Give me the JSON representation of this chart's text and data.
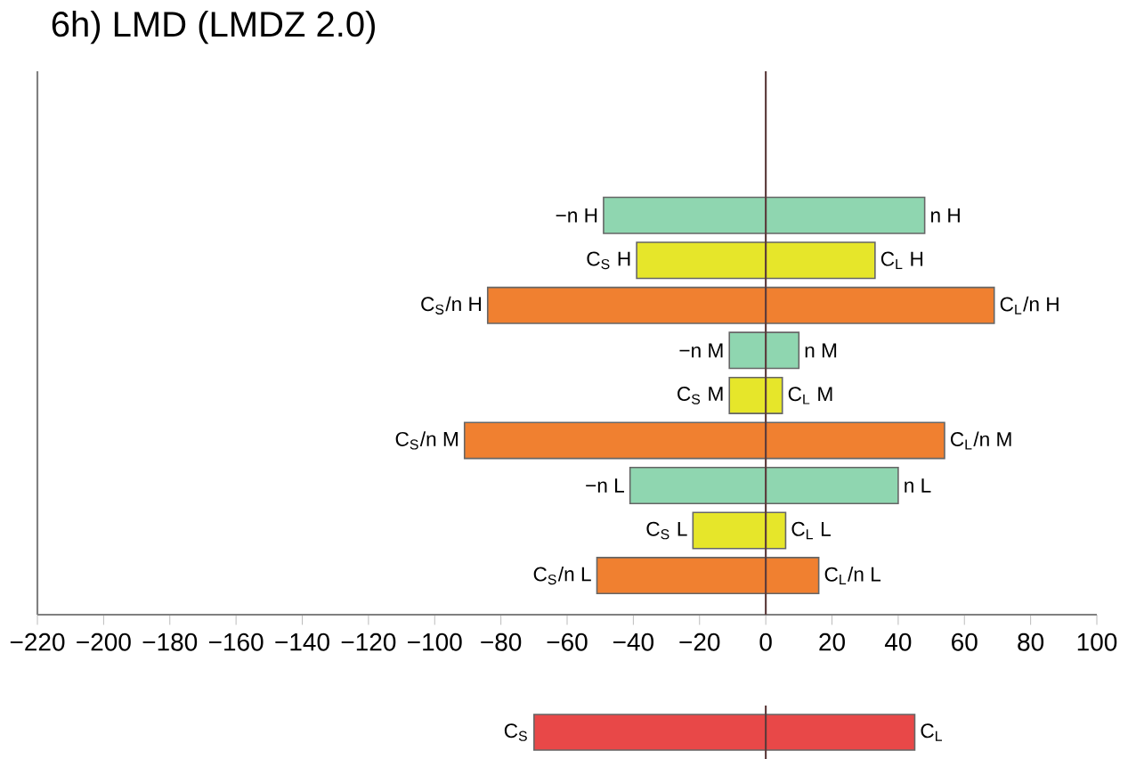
{
  "chart_data": [
    {
      "type": "bar",
      "orientation": "horizontal",
      "title": "6h) LMD (LMDZ 2.0)",
      "categories": [
        "−n H",
        "C$_{S}$ H",
        "C$_{S}$/n H",
        "−n M",
        "C$_{S}$ M",
        "C$_{S}$/n M",
        "−n L",
        "C$_{S}$ L",
        "C$_{S}$/n L"
      ],
      "base": [
        -49,
        -39,
        -84,
        -11,
        -11,
        -91,
        -41,
        -22,
        -51
      ],
      "values": [
        97,
        72,
        153,
        21,
        16,
        145,
        81,
        28,
        67
      ],
      "value_labels": [
        "n H",
        "C$_{L}$ H",
        "C$_{L}$/n H",
        "n M",
        "C$_{L}$ M",
        "C$_{L}$/n M",
        "n L",
        "C$_{L}$ L",
        "C$_{L}$/n L"
      ],
      "colors": [
        "#8fd6b0",
        "#e6e62a",
        "#f08030",
        "#8fd6b0",
        "#e6e62a",
        "#f08030",
        "#8fd6b0",
        "#e6e62a",
        "#f08030"
      ],
      "xlim": [
        -220,
        100
      ],
      "xticks": [
        {
          "value": -220,
          "label": "−220"
        },
        {
          "value": -200,
          "label": "−200"
        },
        {
          "value": -180,
          "label": "−180"
        },
        {
          "value": -160,
          "label": "−160"
        },
        {
          "value": -140,
          "label": "−140"
        },
        {
          "value": -120,
          "label": "−120"
        },
        {
          "value": -100,
          "label": "−100"
        },
        {
          "value": -80,
          "label": "−80"
        },
        {
          "value": -60,
          "label": "−60"
        },
        {
          "value": -40,
          "label": "−40"
        },
        {
          "value": -20,
          "label": "−20"
        },
        0,
        20,
        40,
        60,
        80,
        100
      ],
      "ref_lines": [
        {
          "axis": "x",
          "value": 0,
          "color": "#5a3a3a"
        }
      ],
      "tick_labels": "x"
    },
    {
      "type": "bar",
      "orientation": "horizontal",
      "categories": [
        "C$_{S}$"
      ],
      "base": [
        -70
      ],
      "values": [
        115
      ],
      "value_labels": [
        "C$_{L}$"
      ],
      "colors": [
        "#e84848"
      ],
      "xlim": [
        -220,
        100
      ],
      "ref_lines": [
        {
          "axis": "x",
          "value": 0,
          "color": "#5a3a3a"
        }
      ],
      "tick_labels": false
    }
  ]
}
